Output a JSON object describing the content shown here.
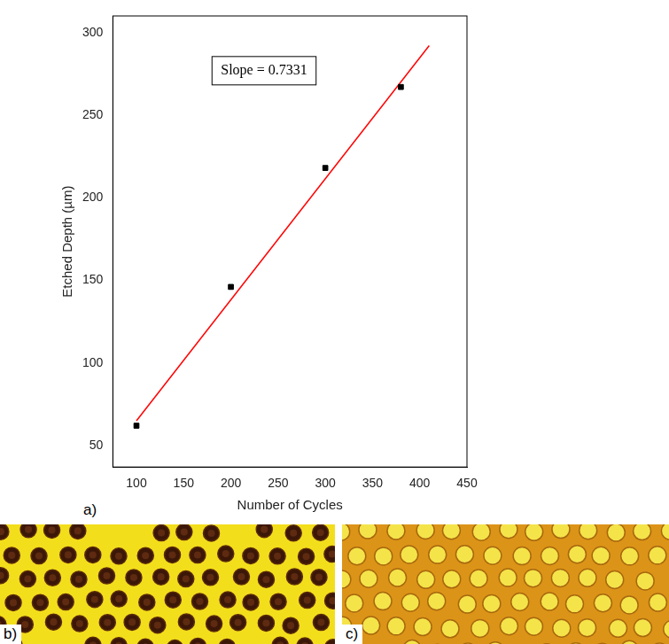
{
  "chart_data": {
    "type": "scatter",
    "panel_label": "a)",
    "x_label": "Number of Cycles",
    "y_label": "Etched Depth (µm)",
    "annotation": "Slope = 0.7331",
    "xlim": [
      75,
      450
    ],
    "xticks": [
      100,
      150,
      200,
      250,
      300,
      350,
      400,
      450
    ],
    "ylim": [
      37,
      310
    ],
    "yticks": [
      50,
      100,
      150,
      200,
      250,
      300
    ],
    "grid": false,
    "series": [
      {
        "type": "scatter",
        "marker": "square",
        "color": "#000000",
        "x": [
          100,
          200,
          300,
          380
        ],
        "values": [
          62,
          146,
          218,
          267
        ]
      },
      {
        "type": "line",
        "line_style": "solid",
        "color": "#ff0000",
        "x": [
          100,
          410
        ],
        "values": [
          65,
          292
        ]
      }
    ]
  },
  "images": [
    {
      "label": "b)"
    },
    {
      "label": "c)"
    }
  ]
}
